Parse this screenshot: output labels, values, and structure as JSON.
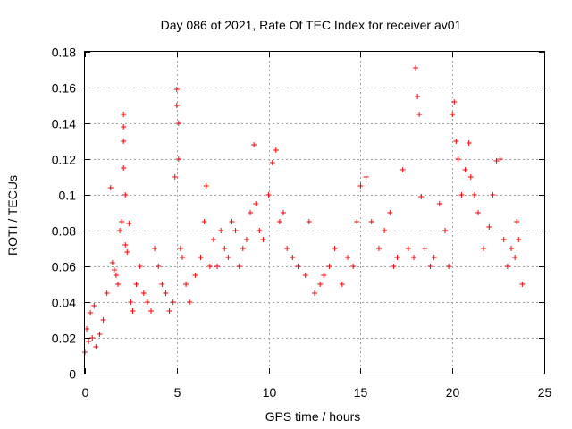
{
  "chart_data": {
    "type": "scatter",
    "title": "Day 086 of 2021, Rate Of TEC Index for receiver av01",
    "xlabel": "GPS time / hours",
    "ylabel": "ROTI / TECUs",
    "xlim": [
      0,
      25
    ],
    "ylim": [
      0,
      0.18
    ],
    "x_ticks": [
      "0",
      "5",
      "10",
      "15",
      "20",
      "25"
    ],
    "y_ticks": [
      "0",
      "0.02",
      "0.04",
      "0.06",
      "0.08",
      "0.1",
      "0.12",
      "0.14",
      "0.16",
      "0.18"
    ],
    "grid": true,
    "marker": "plus",
    "color": "#ff0000",
    "series": [
      {
        "x": [
          0.0,
          0.1,
          0.2,
          0.3,
          0.4,
          0.5,
          0.6,
          0.8,
          1.0,
          1.2,
          1.4,
          1.5,
          1.6,
          1.7,
          1.8,
          1.9,
          2.0,
          2.1,
          2.1,
          2.1,
          2.1,
          2.2,
          2.2,
          2.3,
          2.4,
          2.5,
          2.6,
          2.8,
          3.0,
          3.2,
          3.4,
          3.6,
          3.8,
          4.0,
          4.2,
          4.4,
          4.6,
          4.8,
          4.9,
          5.0,
          5.0,
          5.1,
          5.1,
          5.2,
          5.3,
          5.5,
          5.7,
          6.0,
          6.3,
          6.5,
          6.6,
          6.8,
          7.0,
          7.2,
          7.4,
          7.6,
          7.8,
          8.0,
          8.2,
          8.4,
          8.6,
          8.8,
          9.0,
          9.2,
          9.3,
          9.5,
          9.7,
          10.0,
          10.2,
          10.4,
          10.6,
          10.8,
          11.0,
          11.3,
          11.6,
          12.0,
          12.2,
          12.5,
          12.8,
          13.0,
          13.3,
          13.6,
          14.0,
          14.3,
          14.6,
          14.8,
          15.0,
          15.3,
          15.6,
          16.0,
          16.3,
          16.6,
          16.8,
          17.0,
          17.3,
          17.6,
          17.9,
          18.0,
          18.1,
          18.2,
          18.3,
          18.5,
          18.8,
          19.0,
          19.3,
          19.6,
          19.8,
          20.0,
          20.1,
          20.2,
          20.3,
          20.5,
          20.7,
          20.9,
          21.0,
          21.2,
          21.4,
          21.7,
          22.0,
          22.2,
          22.4,
          22.6,
          22.8,
          23.0,
          23.2,
          23.4,
          23.5,
          23.6,
          23.8
        ],
        "y": [
          0.012,
          0.025,
          0.018,
          0.034,
          0.02,
          0.038,
          0.015,
          0.022,
          0.03,
          0.045,
          0.104,
          0.062,
          0.058,
          0.055,
          0.05,
          0.08,
          0.085,
          0.138,
          0.145,
          0.13,
          0.115,
          0.1,
          0.072,
          0.068,
          0.084,
          0.04,
          0.035,
          0.05,
          0.06,
          0.045,
          0.04,
          0.035,
          0.07,
          0.06,
          0.05,
          0.045,
          0.035,
          0.04,
          0.11,
          0.159,
          0.15,
          0.14,
          0.12,
          0.07,
          0.065,
          0.05,
          0.04,
          0.055,
          0.065,
          0.085,
          0.105,
          0.06,
          0.075,
          0.06,
          0.08,
          0.07,
          0.065,
          0.085,
          0.08,
          0.06,
          0.07,
          0.075,
          0.09,
          0.128,
          0.095,
          0.08,
          0.075,
          0.1,
          0.118,
          0.125,
          0.085,
          0.09,
          0.07,
          0.065,
          0.06,
          0.055,
          0.085,
          0.045,
          0.05,
          0.055,
          0.06,
          0.07,
          0.05,
          0.065,
          0.06,
          0.085,
          0.105,
          0.11,
          0.085,
          0.07,
          0.08,
          0.09,
          0.06,
          0.065,
          0.114,
          0.07,
          0.065,
          0.171,
          0.155,
          0.145,
          0.099,
          0.07,
          0.06,
          0.065,
          0.095,
          0.08,
          0.06,
          0.145,
          0.152,
          0.13,
          0.12,
          0.1,
          0.114,
          0.129,
          0.11,
          0.1,
          0.09,
          0.07,
          0.082,
          0.1,
          0.119,
          0.12,
          0.075,
          0.06,
          0.07,
          0.065,
          0.085,
          0.075,
          0.05
        ]
      }
    ]
  }
}
